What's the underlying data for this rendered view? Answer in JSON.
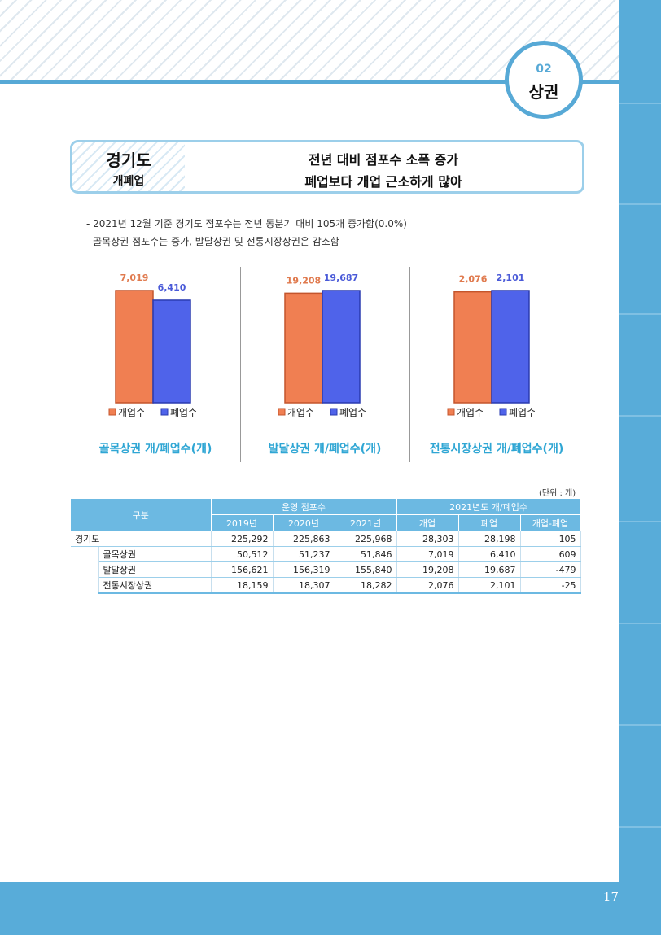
{
  "badge": {
    "number": "02",
    "label": "상권"
  },
  "header": {
    "region": "경기도",
    "subtitle": "개폐업",
    "line1": "전년 대비 점포수 소폭 증가",
    "line2": "폐업보다 개업 근소하게 많아"
  },
  "bullets": [
    "- 2021년 12월 기준 경기도 점포수는 전년 동분기 대비 105개 증가함(0.0%)",
    "- 골목상권 점포수는 증가, 발달상권 및 전통시장상권은 감소함"
  ],
  "colors": {
    "open": "#f07f52",
    "close": "#4f63ea",
    "accent": "#58acd9",
    "chart_title": "#2fa6d4"
  },
  "chart_data": [
    {
      "type": "bar",
      "title": "골목상권 개/폐업수(개)",
      "categories": [
        "개업수",
        "폐업수"
      ],
      "values": [
        7019,
        6410
      ],
      "value_labels": [
        "7,019",
        "6,410"
      ],
      "legend": [
        "개업수",
        "폐업수"
      ]
    },
    {
      "type": "bar",
      "title": "발달상권 개/폐업수(개)",
      "categories": [
        "개업수",
        "폐업수"
      ],
      "values": [
        19208,
        19687
      ],
      "value_labels": [
        "19,208",
        "19,687"
      ],
      "legend": [
        "개업수",
        "폐업수"
      ]
    },
    {
      "type": "bar",
      "title": "전통시장상권 개/폐업수(개)",
      "categories": [
        "개업수",
        "폐업수"
      ],
      "values": [
        2076,
        2101
      ],
      "value_labels": [
        "2,076",
        "2,101"
      ],
      "legend": [
        "개업수",
        "폐업수"
      ]
    }
  ],
  "table": {
    "unit": "(단위 : 개)",
    "header_group": "구분",
    "group_stores": "운영 점포수",
    "group_openclose": "2021년도 개/폐업수",
    "columns": [
      "2019년",
      "2020년",
      "2021년",
      "개업",
      "폐업",
      "개업-폐업"
    ],
    "rows": [
      {
        "label": "경기도",
        "values": [
          "225,292",
          "225,863",
          "225,968",
          "28,303",
          "28,198",
          "105"
        ]
      },
      {
        "label": "골목상권",
        "values": [
          "50,512",
          "51,237",
          "51,846",
          "7,019",
          "6,410",
          "609"
        ]
      },
      {
        "label": "발달상권",
        "values": [
          "156,621",
          "156,319",
          "155,840",
          "19,208",
          "19,687",
          "-479"
        ]
      },
      {
        "label": "전통시장상권",
        "values": [
          "18,159",
          "18,307",
          "18,282",
          "2,076",
          "2,101",
          "-25"
        ]
      }
    ]
  },
  "page_number": "17"
}
